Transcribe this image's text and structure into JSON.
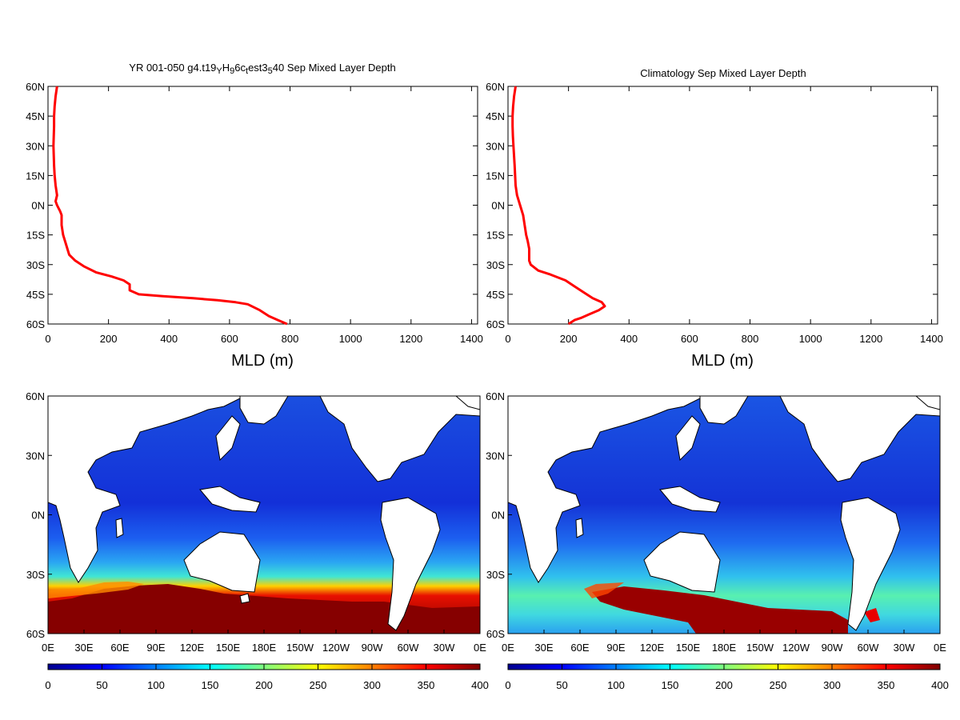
{
  "chart_data": [
    {
      "type": "line",
      "panel": "profile-model",
      "title_parts": [
        {
          "text": "YR 001-050 g4.t19",
          "shift": "none"
        },
        {
          "text": "Y",
          "shift": "sub"
        },
        {
          "text": "H",
          "shift": "none"
        },
        {
          "text": "9",
          "shift": "sub"
        },
        {
          "text": "6c",
          "shift": "none"
        },
        {
          "text": "t",
          "shift": "sub"
        },
        {
          "text": "est3",
          "shift": "none"
        },
        {
          "text": "5",
          "shift": "sub"
        },
        {
          "text": "40 Sep Mixed Layer Depth",
          "shift": "none"
        }
      ],
      "xlabel": "MLD (m)",
      "xlim": [
        0,
        1420
      ],
      "ylim": [
        -60,
        60
      ],
      "x_ticks": [
        0,
        200,
        400,
        600,
        800,
        1000,
        1200,
        1400
      ],
      "x_tick_labels": [
        "0",
        "200",
        "400",
        "600",
        "800",
        "1000",
        "1200",
        "1400"
      ],
      "y_ticks": [
        60,
        45,
        30,
        15,
        0,
        -15,
        -30,
        -45,
        -60
      ],
      "y_tick_labels": [
        "60N",
        "45N",
        "30N",
        "15N",
        "0N",
        "15S",
        "30S",
        "45S",
        "60S"
      ],
      "series": [
        {
          "color": "#ff0000",
          "points": [
            [
              30,
              60
            ],
            [
              25,
              55
            ],
            [
              22,
              50
            ],
            [
              20,
              45
            ],
            [
              20,
              40
            ],
            [
              19,
              35
            ],
            [
              18,
              30
            ],
            [
              19,
              25
            ],
            [
              20,
              20
            ],
            [
              22,
              15
            ],
            [
              25,
              10
            ],
            [
              30,
              5
            ],
            [
              25,
              2
            ],
            [
              30,
              0
            ],
            [
              40,
              -3
            ],
            [
              45,
              -5
            ],
            [
              45,
              -10
            ],
            [
              50,
              -15
            ],
            [
              60,
              -20
            ],
            [
              70,
              -25
            ],
            [
              90,
              -28
            ],
            [
              120,
              -31
            ],
            [
              160,
              -34
            ],
            [
              210,
              -36
            ],
            [
              250,
              -38
            ],
            [
              270,
              -40
            ],
            [
              270,
              -43
            ],
            [
              300,
              -45
            ],
            [
              380,
              -46
            ],
            [
              480,
              -47
            ],
            [
              560,
              -48
            ],
            [
              620,
              -49
            ],
            [
              660,
              -50
            ],
            [
              700,
              -53
            ],
            [
              730,
              -56
            ],
            [
              760,
              -58
            ],
            [
              790,
              -60
            ]
          ]
        }
      ]
    },
    {
      "type": "line",
      "panel": "profile-climatology",
      "title_parts": [
        {
          "text": "Climatology Sep Mixed Layer Depth",
          "shift": "none"
        }
      ],
      "xlabel": "MLD (m)",
      "xlim": [
        0,
        1420
      ],
      "ylim": [
        -60,
        60
      ],
      "x_ticks": [
        0,
        200,
        400,
        600,
        800,
        1000,
        1200,
        1400
      ],
      "x_tick_labels": [
        "0",
        "200",
        "400",
        "600",
        "800",
        "1000",
        "1200",
        "1400"
      ],
      "y_ticks": [
        60,
        45,
        30,
        15,
        0,
        -15,
        -30,
        -45,
        -60
      ],
      "y_tick_labels": [
        "60N",
        "45N",
        "30N",
        "15N",
        "0N",
        "15S",
        "30S",
        "45S",
        "60S"
      ],
      "series": [
        {
          "color": "#ff0000",
          "points": [
            [
              25,
              60
            ],
            [
              20,
              55
            ],
            [
              17,
              50
            ],
            [
              15,
              45
            ],
            [
              15,
              40
            ],
            [
              16,
              35
            ],
            [
              18,
              30
            ],
            [
              22,
              20
            ],
            [
              25,
              10
            ],
            [
              30,
              5
            ],
            [
              40,
              0
            ],
            [
              50,
              -5
            ],
            [
              55,
              -10
            ],
            [
              60,
              -15
            ],
            [
              65,
              -18
            ],
            [
              70,
              -22
            ],
            [
              70,
              -28
            ],
            [
              75,
              -30
            ],
            [
              100,
              -33
            ],
            [
              140,
              -35
            ],
            [
              190,
              -38
            ],
            [
              220,
              -41
            ],
            [
              250,
              -44
            ],
            [
              280,
              -47
            ],
            [
              310,
              -49
            ],
            [
              320,
              -51
            ],
            [
              300,
              -53
            ],
            [
              270,
              -55
            ],
            [
              240,
              -57
            ],
            [
              220,
              -58
            ],
            [
              200,
              -60
            ]
          ]
        }
      ]
    },
    {
      "type": "heatmap",
      "panel": "map-model",
      "x_tick_labels": [
        "0E",
        "30E",
        "60E",
        "90E",
        "120E",
        "150E",
        "180E",
        "150W",
        "120W",
        "90W",
        "60W",
        "30W",
        "0E"
      ],
      "y_tick_labels": [
        "60N",
        "30N",
        "0N",
        "30S",
        "60S"
      ],
      "colorbar": {
        "vmin": 0,
        "vmax": 400,
        "tick_labels": [
          "0",
          "50",
          "100",
          "150",
          "200",
          "250",
          "300",
          "350",
          "400"
        ]
      }
    },
    {
      "type": "heatmap",
      "panel": "map-climatology",
      "x_tick_labels": [
        "0E",
        "30E",
        "60E",
        "90E",
        "120E",
        "150E",
        "180E",
        "150W",
        "120W",
        "90W",
        "60W",
        "30W",
        "0E"
      ],
      "y_tick_labels": [
        "60N",
        "30N",
        "0N",
        "30S",
        "60S"
      ],
      "colorbar": {
        "vmin": 0,
        "vmax": 400,
        "tick_labels": [
          "0",
          "50",
          "100",
          "150",
          "200",
          "250",
          "300",
          "350",
          "400"
        ]
      }
    }
  ]
}
